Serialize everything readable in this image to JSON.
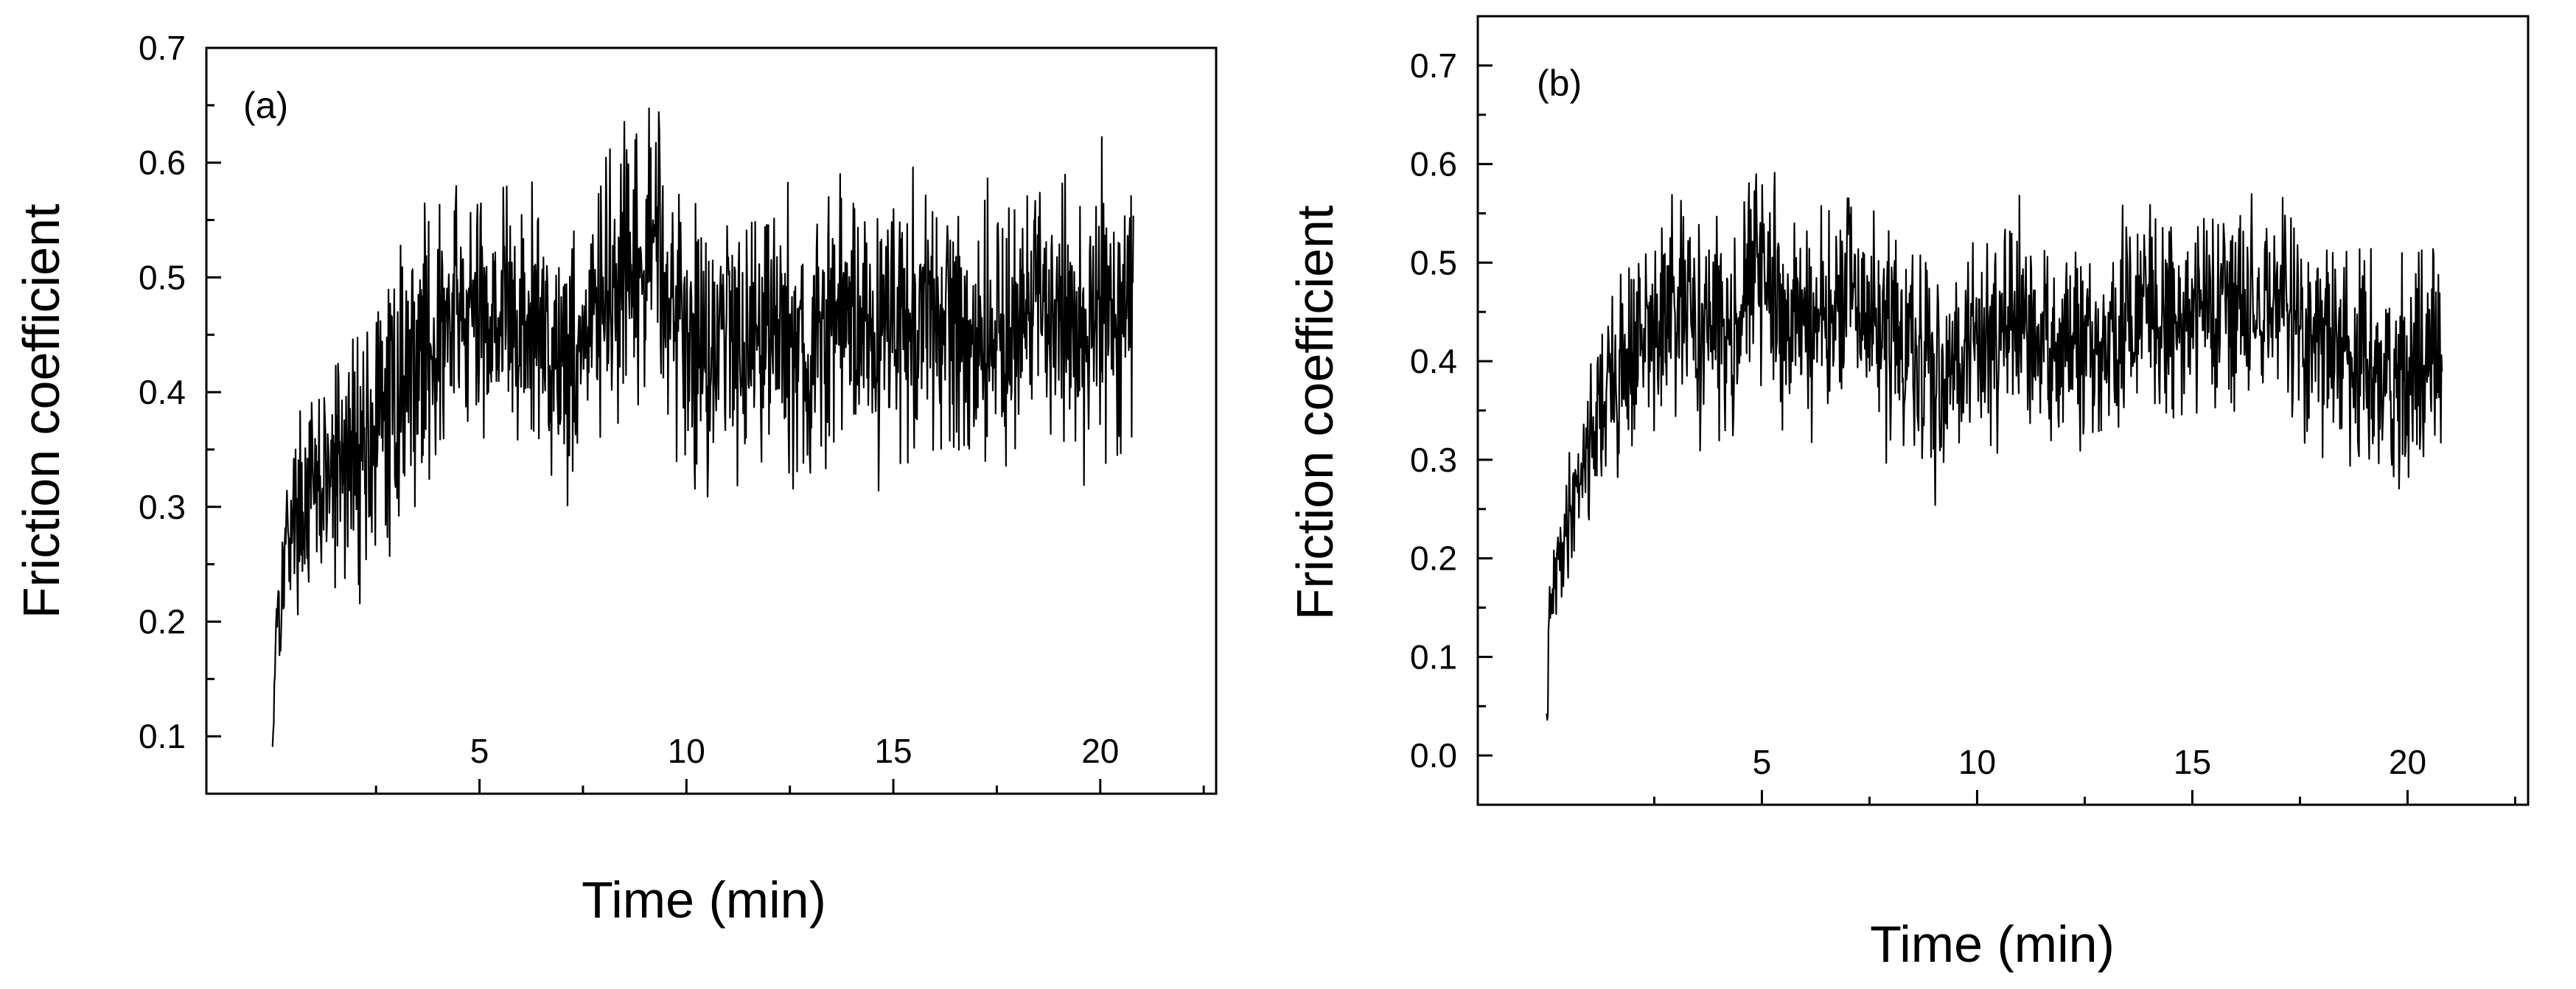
{
  "chart_data": [
    {
      "type": "line",
      "panel_label": "(a)",
      "xlabel": "Time (min)",
      "ylabel": "Friction coefficient",
      "xlim": [
        -1.6,
        22.8
      ],
      "ylim": [
        0.05,
        0.7
      ],
      "x_ticks": [
        5,
        10,
        15,
        20
      ],
      "y_ticks": [
        0.1,
        0.2,
        0.3,
        0.4,
        0.5,
        0.6,
        0.7
      ],
      "grid": false,
      "series": [
        {
          "x": [
            0,
            0.05,
            0.1,
            0.2,
            0.3,
            0.5,
            0.7,
            1.0,
            1.3,
            1.6,
            2.0,
            2.4,
            2.8,
            3.0,
            3.2,
            3.5,
            3.8,
            4.0,
            4.3,
            4.6,
            5.0,
            5.4,
            5.8,
            6.0,
            6.5,
            7.0,
            7.3,
            7.6,
            8.0,
            8.5,
            9.0,
            9.3,
            9.6,
            10.0,
            10.5,
            11.0,
            11.5,
            12.0,
            12.5,
            13.0,
            13.5,
            14.0,
            14.5,
            15.0,
            15.5,
            16.0,
            16.5,
            17.0,
            17.5,
            18.0,
            18.5,
            19.0,
            19.5,
            20.0,
            20.3,
            20.6,
            20.8
          ],
          "y": [
            0.09,
            0.16,
            0.22,
            0.21,
            0.27,
            0.29,
            0.3,
            0.31,
            0.32,
            0.33,
            0.35,
            0.36,
            0.38,
            0.4,
            0.42,
            0.43,
            0.45,
            0.44,
            0.46,
            0.47,
            0.46,
            0.48,
            0.46,
            0.45,
            0.46,
            0.43,
            0.44,
            0.45,
            0.48,
            0.49,
            0.5,
            0.56,
            0.48,
            0.45,
            0.44,
            0.46,
            0.45,
            0.47,
            0.44,
            0.42,
            0.46,
            0.48,
            0.45,
            0.47,
            0.46,
            0.45,
            0.47,
            0.44,
            0.46,
            0.45,
            0.47,
            0.48,
            0.45,
            0.47,
            0.49,
            0.46,
            0.5
          ],
          "noise": 0.055
        }
      ]
    },
    {
      "type": "line",
      "panel_label": "(b)",
      "xlabel": "Time (min)",
      "ylabel": "Friction coefficient",
      "xlim": [
        -1.6,
        22.8
      ],
      "ylim": [
        -0.05,
        0.75
      ],
      "x_ticks": [
        5,
        10,
        15,
        20
      ],
      "y_ticks": [
        0.0,
        0.1,
        0.2,
        0.3,
        0.4,
        0.5,
        0.6,
        0.7
      ],
      "grid": false,
      "series": [
        {
          "x": [
            0,
            0.05,
            0.1,
            0.2,
            0.3,
            0.5,
            0.7,
            1.0,
            1.3,
            1.6,
            2.0,
            2.5,
            3.0,
            3.5,
            4.0,
            4.5,
            4.8,
            5.0,
            5.3,
            5.6,
            6.0,
            6.5,
            7.0,
            7.5,
            8.0,
            8.5,
            9.0,
            9.5,
            10.0,
            10.5,
            11.0,
            11.5,
            12.0,
            12.5,
            13.0,
            13.5,
            14.0,
            14.5,
            15.0,
            15.5,
            16.0,
            16.5,
            17.0,
            17.5,
            18.0,
            18.5,
            19.0,
            19.5,
            20.0,
            20.5,
            20.8
          ],
          "y": [
            0.02,
            0.12,
            0.15,
            0.18,
            0.2,
            0.24,
            0.28,
            0.32,
            0.36,
            0.38,
            0.41,
            0.43,
            0.45,
            0.44,
            0.43,
            0.45,
            0.5,
            0.49,
            0.46,
            0.44,
            0.45,
            0.43,
            0.47,
            0.44,
            0.43,
            0.4,
            0.38,
            0.41,
            0.42,
            0.44,
            0.43,
            0.41,
            0.42,
            0.4,
            0.41,
            0.44,
            0.46,
            0.45,
            0.45,
            0.47,
            0.46,
            0.45,
            0.46,
            0.43,
            0.42,
            0.41,
            0.4,
            0.38,
            0.39,
            0.4,
            0.43
          ],
          "noise": 0.05
        }
      ]
    }
  ]
}
